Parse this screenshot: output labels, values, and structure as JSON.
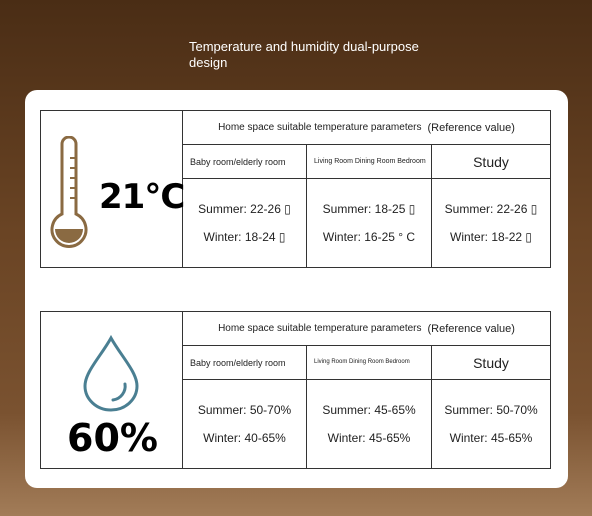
{
  "heading": "Temperature and humidity dual-purpose design",
  "panels": [
    {
      "big_value": "21°C",
      "icon": "thermometer-icon",
      "header_title": "Home space suitable temperature parameters",
      "header_ref": "(Reference value)",
      "columns": [
        {
          "name": "Baby room/elderly room",
          "summer": "Summer: 22-26 ▯",
          "winter": "Winter: 18-24 ▯"
        },
        {
          "name": "Living Room Dining Room Bedroom",
          "summer": "Summer: 18-25 ▯",
          "winter": "Winter: 16-25 ° C"
        },
        {
          "name": "Study",
          "summer": "Summer: 22-26 ▯",
          "winter": "Winter: 18-22 ▯"
        }
      ]
    },
    {
      "big_value": "60%",
      "icon": "water-drop-icon",
      "header_title": "Home space suitable temperature parameters",
      "header_ref": "(Reference value)",
      "columns": [
        {
          "name": "Baby room/elderly room",
          "summer": "Summer: 50-70%",
          "winter": "Winter: 40-65%"
        },
        {
          "name": "Living Room Dining Room Bedroom",
          "summer": "Summer: 45-65%",
          "winter": "Winter: 45-65%"
        },
        {
          "name": "Study",
          "summer": "Summer: 50-70%",
          "winter": "Winter: 45-65%"
        }
      ]
    }
  ],
  "colors": {
    "thermometer": "#8a6a42",
    "drop": "#4a7f92"
  }
}
